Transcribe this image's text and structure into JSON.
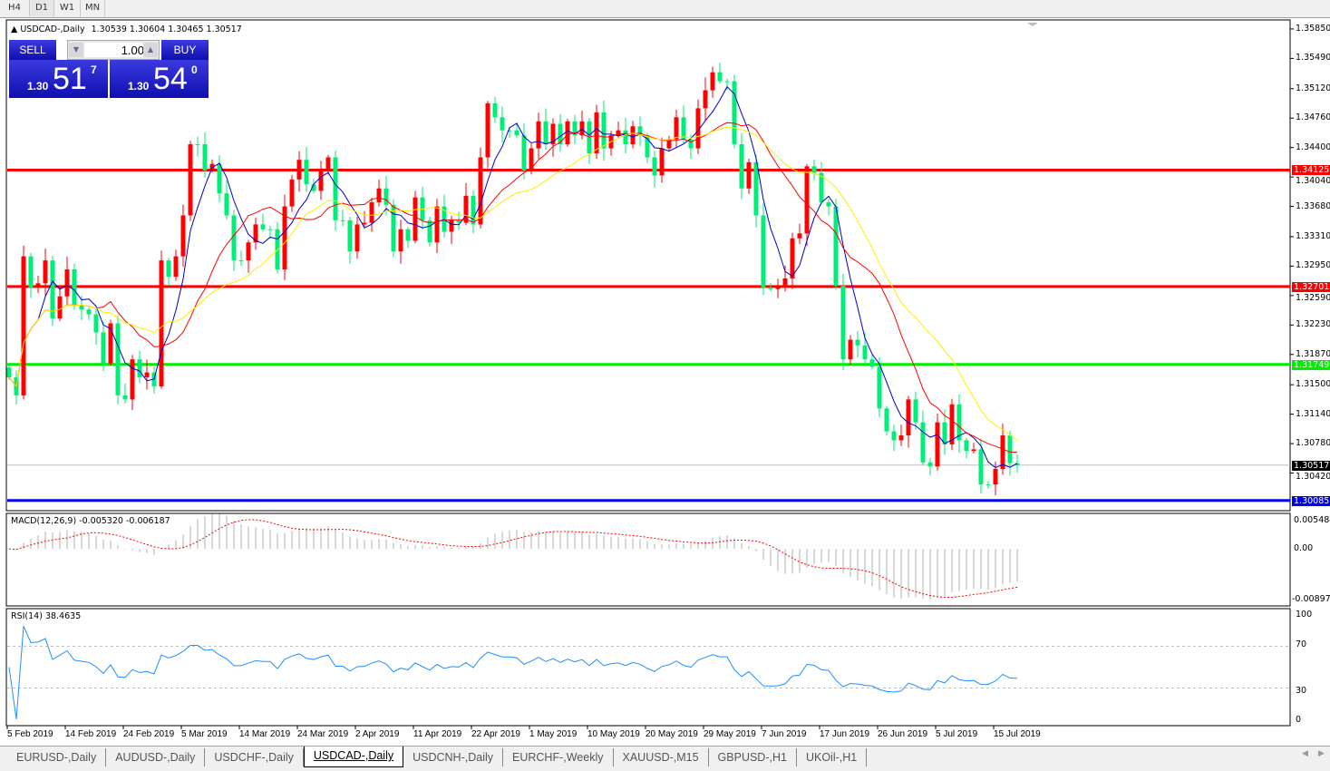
{
  "timeframes": [
    "H4",
    "D1",
    "W1",
    "MN"
  ],
  "active_timeframe": "D1",
  "chart": {
    "title": "USDCAD-,Daily",
    "ohlc_text": "1.30539 1.30604 1.30465 1.30517",
    "sell_label": "SELL",
    "buy_label": "BUY",
    "lot": "1.00",
    "bid_prefix": "1.30",
    "bid_big": "51",
    "bid_small": "7",
    "ask_prefix": "1.30",
    "ask_big": "54",
    "ask_small": "0"
  },
  "price_axis": [
    "1.35850",
    "1.35490",
    "1.35120",
    "1.34760",
    "1.34400",
    "1.34040",
    "1.33680",
    "1.33310",
    "1.32950",
    "1.32590",
    "1.32230",
    "1.31870",
    "1.31500",
    "1.31140",
    "1.30780",
    "1.30420"
  ],
  "hlines": [
    {
      "price": "1.34125",
      "color": "#ff0000"
    },
    {
      "price": "1.32701",
      "color": "#ff0000"
    },
    {
      "price": "1.31749",
      "color": "#00ee00"
    },
    {
      "price": "1.30085",
      "color": "#0000ee"
    }
  ],
  "current_price": "1.30517",
  "colors": {
    "bull": "#ff0000",
    "bear": "#00ee77",
    "ma_fast": "#0000cc",
    "ma_mid": "#ff0000",
    "ma_slow": "#ffee00",
    "rsi": "#1e90ff"
  },
  "macd": {
    "label": "MACD(12,26,9) -0.005320 -0.006187",
    "axis": [
      "0.005484",
      "0.00",
      "-0.008973"
    ],
    "ylim": [
      -0.009,
      0.0055
    ]
  },
  "rsi": {
    "label": "RSI(14) 38.4635",
    "axis": [
      "100",
      "70",
      "30",
      "0"
    ],
    "levels": [
      70,
      30
    ]
  },
  "dates": [
    "5 Feb 2019",
    "14 Feb 2019",
    "24 Feb 2019",
    "5 Mar 2019",
    "14 Mar 2019",
    "24 Mar 2019",
    "2 Apr 2019",
    "11 Apr 2019",
    "22 Apr 2019",
    "1 May 2019",
    "10 May 2019",
    "20 May 2019",
    "29 May 2019",
    "7 Jun 2019",
    "17 Jun 2019",
    "26 Jun 2019",
    "5 Jul 2019",
    "15 Jul 2019"
  ],
  "tabs": [
    "EURUSD-,Daily",
    "AUDUSD-,Daily",
    "USDCHF-,Daily",
    "USDCAD-,Daily",
    "USDCNH-,Daily",
    "EURCHF-,Weekly",
    "XAUUSD-,M15",
    "GBPUSD-,H1",
    "UKOil-,H1"
  ],
  "active_tab": 3,
  "chart_data": {
    "type": "candlestick",
    "ylim": [
      1.2996,
      1.3596
    ],
    "closes": [
      1.3159,
      1.3137,
      1.3307,
      1.3269,
      1.3274,
      1.3302,
      1.3231,
      1.3258,
      1.3291,
      1.3247,
      1.3242,
      1.3236,
      1.3214,
      1.3176,
      1.3225,
      1.3137,
      1.3132,
      1.3181,
      1.3159,
      1.3165,
      1.3148,
      1.3302,
      1.3282,
      1.3307,
      1.3357,
      1.3444,
      1.3444,
      1.3412,
      1.342,
      1.3384,
      1.3357,
      1.3302,
      1.3302,
      1.3324,
      1.3346,
      1.334,
      1.334,
      1.3291,
      1.3368,
      1.3401,
      1.3425,
      1.3395,
      1.3387,
      1.3412,
      1.3428,
      1.3351,
      1.3351,
      1.3313,
      1.3346,
      1.3348,
      1.3373,
      1.339,
      1.337,
      1.3313,
      1.334,
      1.3326,
      1.3379,
      1.3351,
      1.3324,
      1.3368,
      1.3337,
      1.3351,
      1.3348,
      1.3381,
      1.3346,
      1.3428,
      1.3494,
      1.3477,
      1.3461,
      1.3461,
      1.3455,
      1.3412,
      1.3439,
      1.3472,
      1.3444,
      1.3469,
      1.3444,
      1.3472,
      1.3455,
      1.3472,
      1.3433,
      1.3483,
      1.3439,
      1.3455,
      1.3461,
      1.3444,
      1.3466,
      1.3455,
      1.3428,
      1.3406,
      1.3439,
      1.345,
      1.3477,
      1.345,
      1.3439,
      1.3488,
      1.351,
      1.3532,
      1.3521,
      1.3521,
      1.3444,
      1.339,
      1.3422,
      1.3357,
      1.3269,
      1.3267,
      1.3269,
      1.328,
      1.3329,
      1.3335,
      1.3417,
      1.3409,
      1.3373,
      1.3368,
      1.3271,
      1.3181,
      1.3205,
      1.3198,
      1.3181,
      1.3172,
      1.3121,
      1.3093,
      1.3082,
      1.3088,
      1.3132,
      1.3104,
      1.3055,
      1.305,
      1.3104,
      1.3077,
      1.3126,
      1.3082,
      1.3069,
      1.3071,
      1.3028,
      1.3028,
      1.3047,
      1.3088,
      1.3054,
      1.30517
    ]
  }
}
